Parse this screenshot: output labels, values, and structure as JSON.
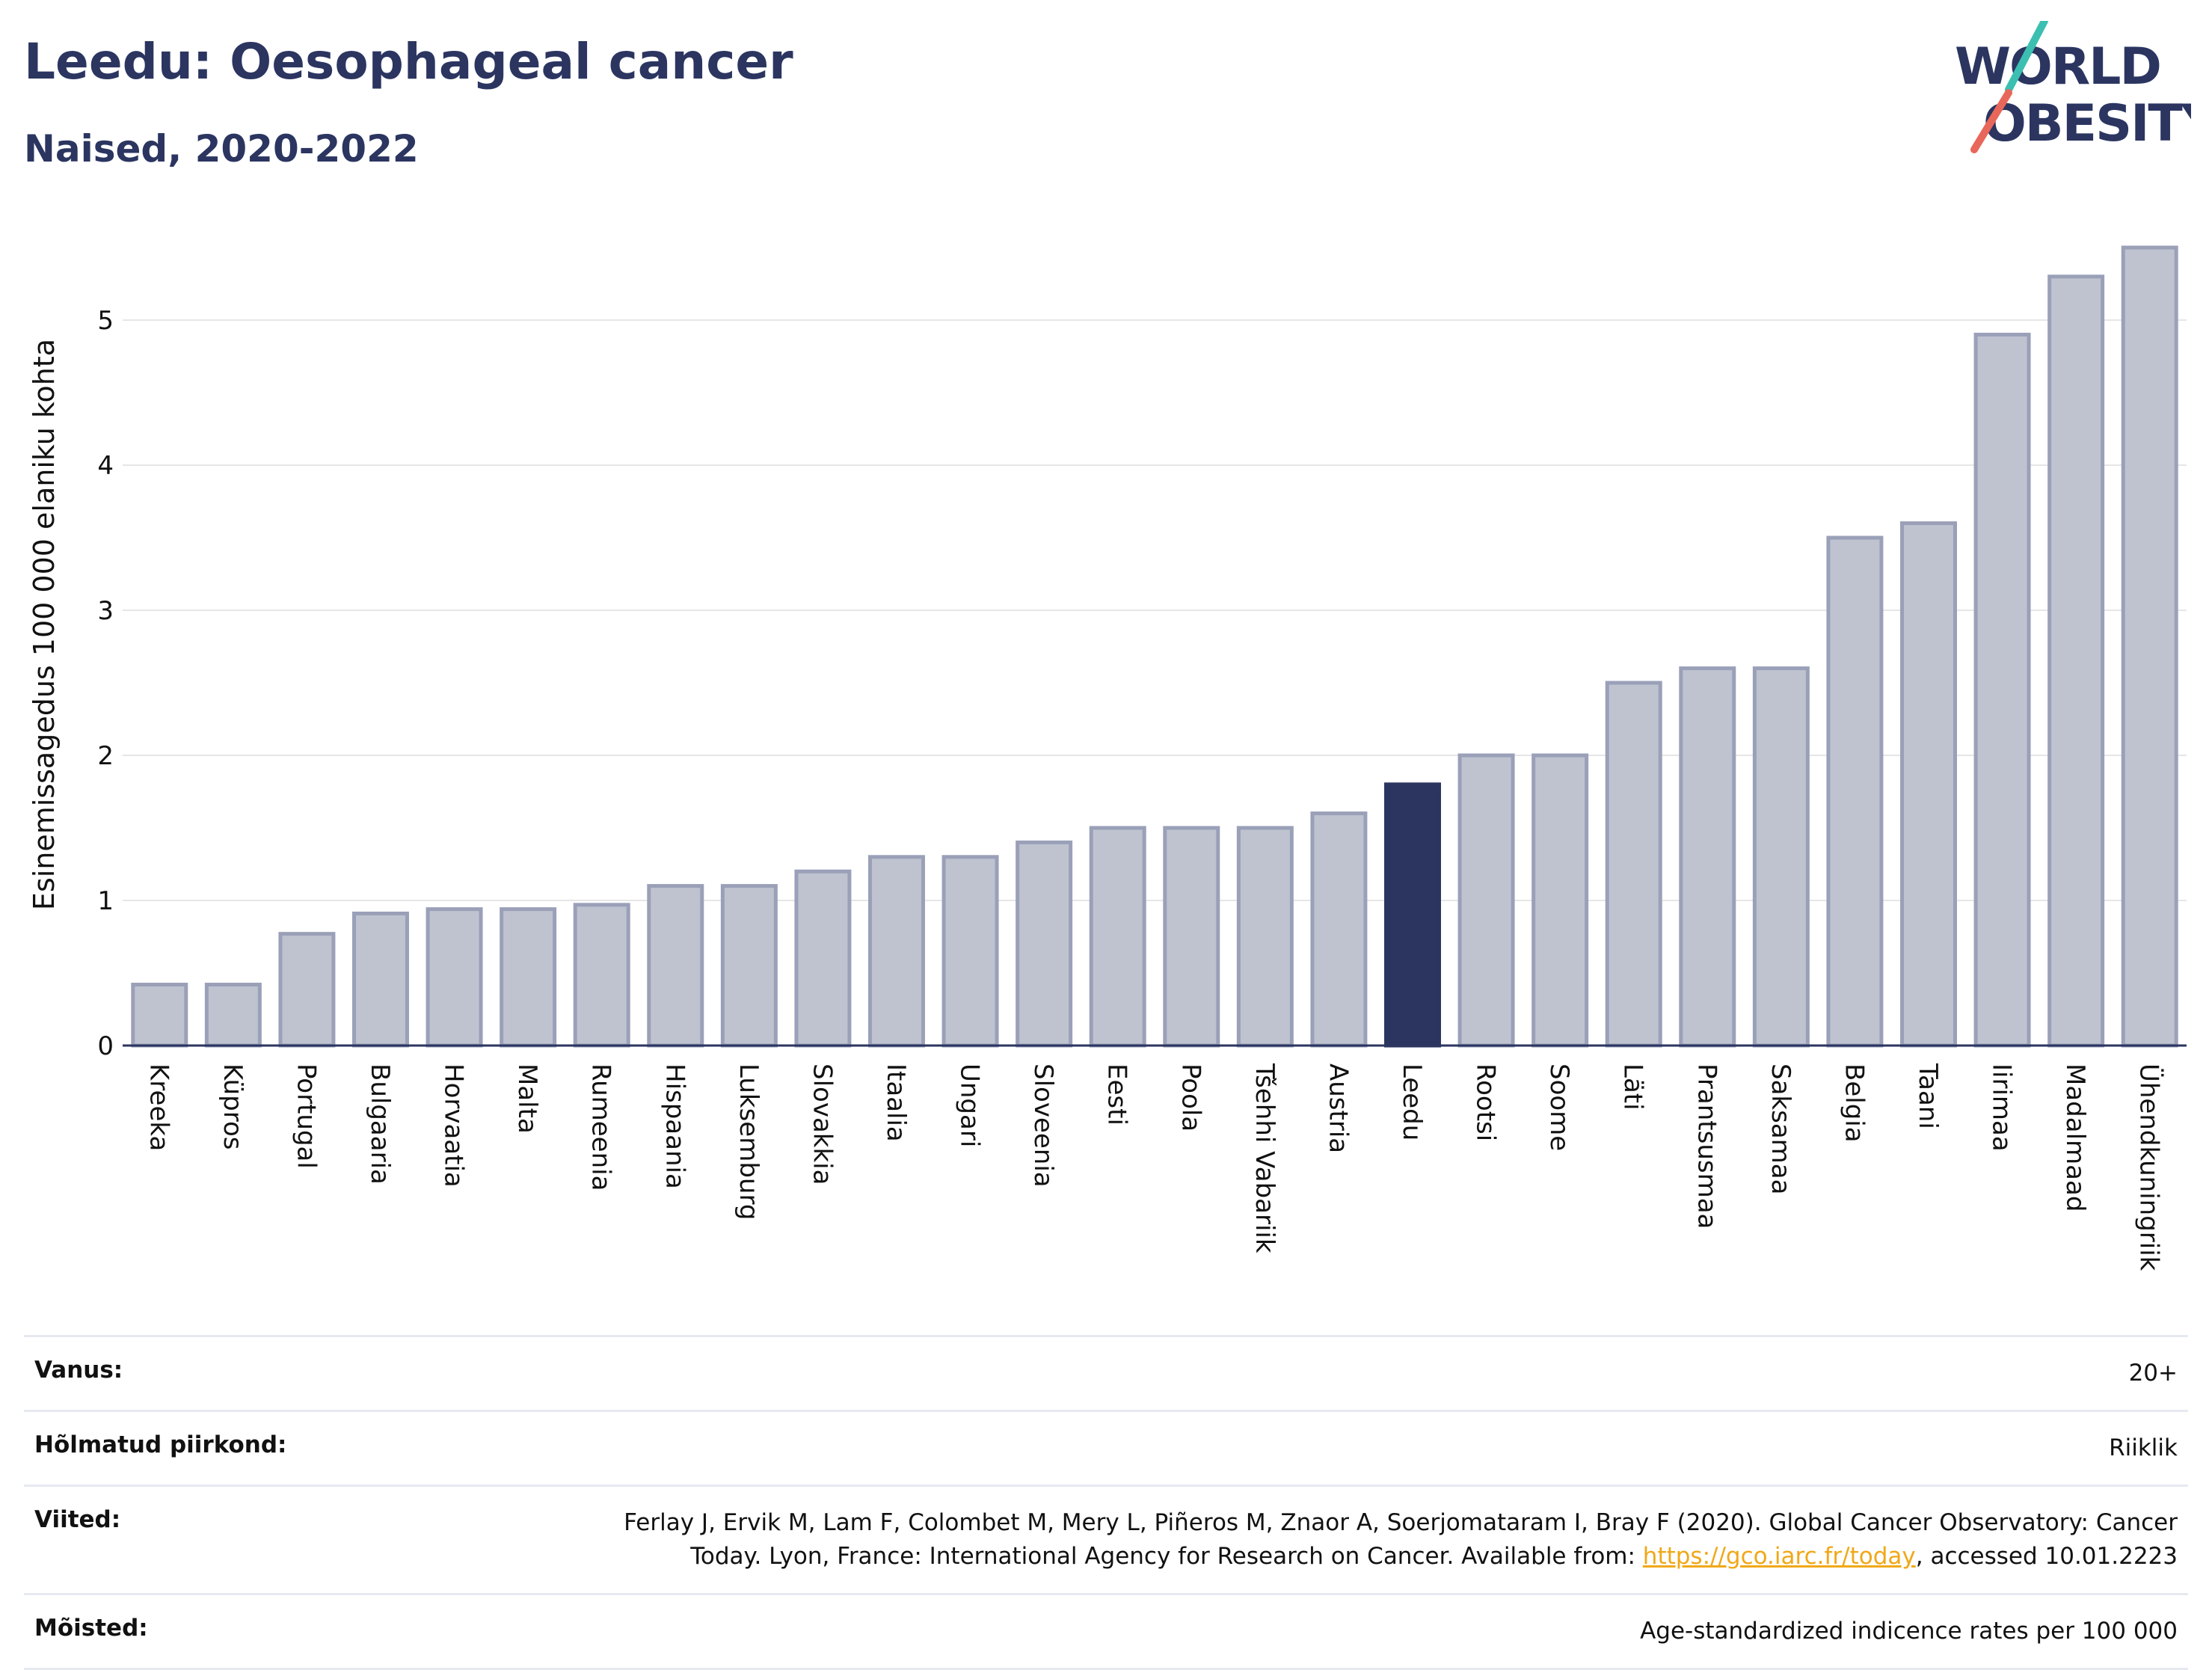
{
  "header": {
    "title": "Leedu: Oesophageal cancer",
    "subtitle": "Naised, 2020-2022"
  },
  "logo": {
    "line1": "WORLD",
    "line2": "OBESITY"
  },
  "colors": {
    "highlight": "#2b3560",
    "bar_fill": "#bfc3d0",
    "bar_stroke": "#9aa0b8",
    "grid": "#e6e6e6",
    "link": "#f0a818"
  },
  "chart_data": {
    "type": "bar",
    "ylabel": "Esinemissagedus 100 000 elaniku kohta",
    "ylim": [
      0,
      5.6
    ],
    "yticks": [
      0,
      1,
      2,
      3,
      4,
      5
    ],
    "grid": true,
    "highlight": "Leedu",
    "categories": [
      "Kreeka",
      "Küpros",
      "Portugal",
      "Bulgaaria",
      "Horvaatia",
      "Malta",
      "Rumeenia",
      "Hispaania",
      "Luksemburg",
      "Slovakkia",
      "Itaalia",
      "Ungari",
      "Sloveenia",
      "Eesti",
      "Poola",
      "Tšehhi Vabariik",
      "Austria",
      "Leedu",
      "Rootsi",
      "Soome",
      "Läti",
      "Prantsusmaa",
      "Saksamaa",
      "Belgia",
      "Taani",
      "Iirimaa",
      "Madalmaad",
      "Ühendkuningriik"
    ],
    "values": [
      0.42,
      0.42,
      0.77,
      0.91,
      0.94,
      0.94,
      0.97,
      1.1,
      1.1,
      1.2,
      1.3,
      1.3,
      1.4,
      1.5,
      1.5,
      1.5,
      1.6,
      1.8,
      2.0,
      2.0,
      2.5,
      2.6,
      2.6,
      3.5,
      3.6,
      4.9,
      5.3,
      5.5
    ]
  },
  "meta": {
    "age_label": "Vanus:",
    "age_value": "20+",
    "region_label": "Hõlmatud piirkond:",
    "region_value": "Riiklik",
    "refs_label": "Viited:",
    "refs_line1": "Ferlay J, Ervik M, Lam F, Colombet M, Mery L, Piñeros M, Znaor A, Soerjomataram I, Bray F (2020). Global Cancer Observatory: Cancer",
    "refs_line2_pre": "Today. Lyon, France: International Agency for Research on Cancer. Available from: ",
    "refs_link": "https://gco.iarc.fr/today",
    "refs_line2_post": ", accessed 10.01.2223",
    "defs_label": "Mõisted:",
    "defs_value": "Age-standardized indicence rates per 100 000"
  }
}
